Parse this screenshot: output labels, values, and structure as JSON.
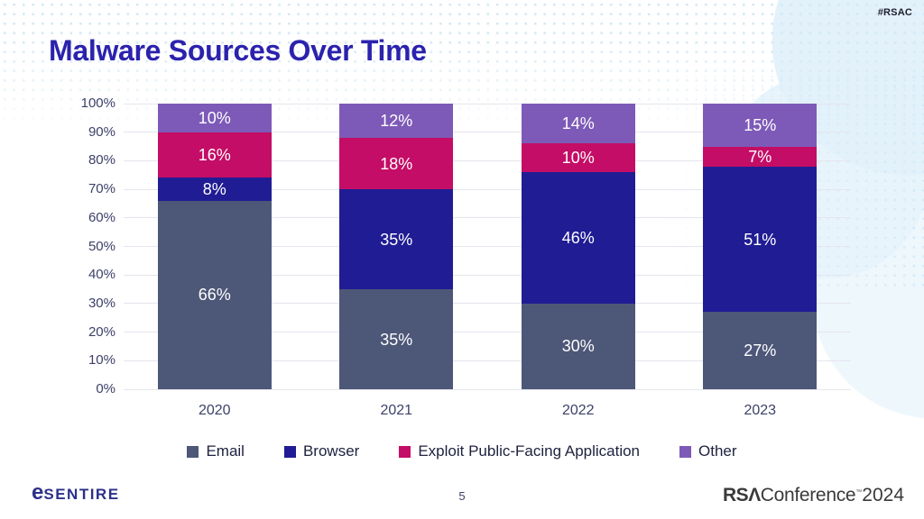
{
  "slide": {
    "hashtag": "#RSAC",
    "title": "Malware Sources Over Time",
    "page_number": "5",
    "footer": {
      "esentire_e": "e",
      "esentire_rest": "SENTIRE",
      "rsa": "RSΛ",
      "conference": "Conference",
      "trademark": "™",
      "year": "2024"
    }
  },
  "chart_data": {
    "type": "bar",
    "stacked": true,
    "title": "Malware Sources Over Time",
    "categories": [
      "2020",
      "2021",
      "2022",
      "2023"
    ],
    "series": [
      {
        "name": "Email",
        "color": "#4d5778",
        "values": [
          66,
          35,
          30,
          27
        ]
      },
      {
        "name": "Browser",
        "color": "#201c94",
        "values": [
          8,
          35,
          46,
          51
        ]
      },
      {
        "name": "Exploit Public-Facing Application",
        "color": "#c40d66",
        "values": [
          16,
          18,
          10,
          7
        ]
      },
      {
        "name": "Other",
        "color": "#7d5ab8",
        "values": [
          10,
          12,
          14,
          15
        ]
      }
    ],
    "value_suffix": "%",
    "xlabel": "",
    "ylabel": "",
    "ylim": [
      0,
      100
    ],
    "yticks": [
      "0%",
      "10%",
      "20%",
      "30%",
      "40%",
      "50%",
      "60%",
      "70%",
      "80%",
      "90%",
      "100%"
    ],
    "grid": true,
    "legend_position": "bottom",
    "data_labels": "inside-white"
  }
}
